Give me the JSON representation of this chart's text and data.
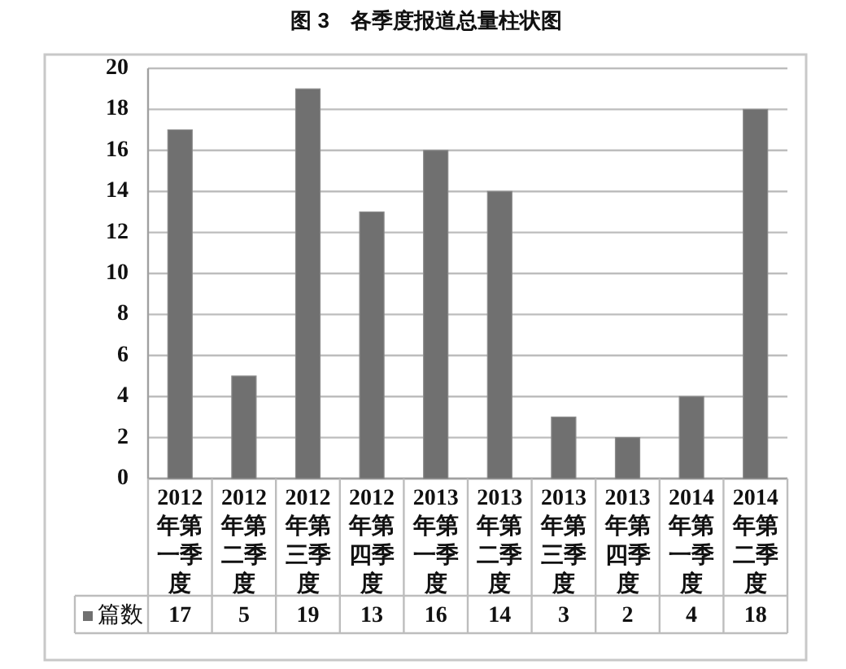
{
  "chart_data": {
    "type": "bar",
    "title": "图 3　各季度报道总量柱状图",
    "categories": [
      "2012年第一季度",
      "2012年第二季度",
      "2012年第三季度",
      "2012年第四季度",
      "2013年第一季度",
      "2013年第二季度",
      "2013年第三季度",
      "2013年第四季度",
      "2014年第一季度",
      "2014年第二季度"
    ],
    "series": [
      {
        "name": "篇数",
        "color": "#707070",
        "values": [
          17,
          5,
          19,
          13,
          16,
          14,
          3,
          2,
          4,
          18
        ]
      }
    ],
    "ylim": [
      0,
      20
    ],
    "yticks": [
      0,
      2,
      4,
      6,
      8,
      10,
      12,
      14,
      16,
      18,
      20
    ],
    "grid": "y",
    "legend": "bottom",
    "data_labels": true
  }
}
